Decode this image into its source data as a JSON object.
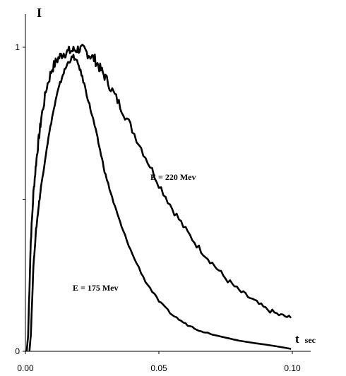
{
  "chart_data": {
    "type": "line",
    "ylabel": "I",
    "xlabel_main": "t",
    "xlabel_unit": "sec",
    "xlim": [
      0.0,
      0.1
    ],
    "ylim": [
      0,
      1
    ],
    "x_ticks": [
      {
        "value": 0.0,
        "label": "0.00"
      },
      {
        "value": 0.05,
        "label": "0.05"
      },
      {
        "value": 0.1,
        "label": "0.10"
      }
    ],
    "y_ticks": [
      {
        "value": 0,
        "label": "0"
      },
      {
        "value": 0.5,
        "label": ""
      },
      {
        "value": 1,
        "label": "1"
      }
    ],
    "grid": false,
    "series": [
      {
        "name": "E = 220 Mev",
        "noise": 0.012,
        "x": [
          0.0005,
          0.001,
          0.002,
          0.003,
          0.004,
          0.005,
          0.006,
          0.008,
          0.01,
          0.012,
          0.014,
          0.016,
          0.018,
          0.02,
          0.022,
          0.024,
          0.026,
          0.028,
          0.03,
          0.033,
          0.036,
          0.04,
          0.045,
          0.05,
          0.055,
          0.06,
          0.065,
          0.07,
          0.075,
          0.08,
          0.085,
          0.09,
          0.095,
          0.0995
        ],
        "y": [
          0.0,
          0.05,
          0.36,
          0.52,
          0.62,
          0.7,
          0.77,
          0.87,
          0.93,
          0.96,
          0.98,
          0.985,
          0.99,
          0.995,
          0.99,
          0.975,
          0.96,
          0.93,
          0.9,
          0.85,
          0.8,
          0.73,
          0.64,
          0.55,
          0.47,
          0.4,
          0.34,
          0.29,
          0.24,
          0.2,
          0.17,
          0.14,
          0.12,
          0.11
        ]
      },
      {
        "name": "E = 175 Mev",
        "noise": 0.005,
        "x": [
          0.0015,
          0.002,
          0.003,
          0.004,
          0.005,
          0.006,
          0.008,
          0.01,
          0.012,
          0.014,
          0.016,
          0.018,
          0.02,
          0.022,
          0.024,
          0.026,
          0.028,
          0.03,
          0.033,
          0.036,
          0.04,
          0.045,
          0.05,
          0.055,
          0.06,
          0.065,
          0.07,
          0.075,
          0.08,
          0.085,
          0.09,
          0.095,
          0.0995
        ],
        "y": [
          0.0,
          0.05,
          0.28,
          0.4,
          0.48,
          0.55,
          0.67,
          0.77,
          0.85,
          0.91,
          0.95,
          0.97,
          0.94,
          0.88,
          0.81,
          0.74,
          0.66,
          0.58,
          0.49,
          0.41,
          0.32,
          0.23,
          0.165,
          0.12,
          0.09,
          0.07,
          0.055,
          0.045,
          0.035,
          0.028,
          0.022,
          0.015,
          0.008
        ]
      }
    ]
  }
}
